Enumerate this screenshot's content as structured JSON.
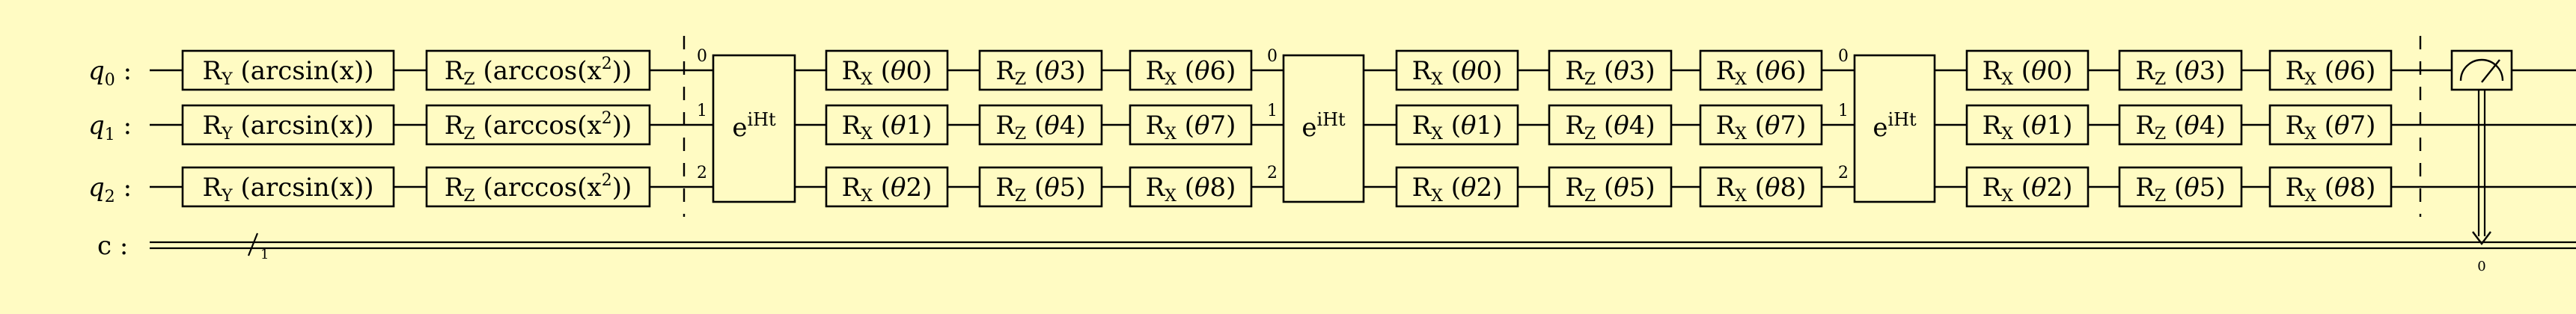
{
  "background": "#fffbc3",
  "ink": "#000000",
  "qubit_labels": [
    "q",
    "q",
    "q"
  ],
  "qubit_indices": [
    "0",
    "1",
    "2"
  ],
  "label_colon": ":",
  "classical_label": "c :",
  "classical_bundle_width": "1",
  "measure_bit": "0",
  "encoding_gates": {
    "ry": {
      "op": "R",
      "sub": "Y",
      "arg": "(arcsin(x))"
    },
    "rz": {
      "op": "R",
      "sub": "Z",
      "arg_pre": "(arccos(x",
      "arg_sup": "2",
      "arg_post": "))"
    }
  },
  "evolution_gate": {
    "base": "e",
    "sup": "iHt",
    "port_labels": [
      "0",
      "1",
      "2"
    ]
  },
  "variational_layer": {
    "columns": [
      {
        "sub": "X",
        "params": [
          "θ0",
          "θ1",
          "θ2"
        ]
      },
      {
        "sub": "Z",
        "params": [
          "θ3",
          "θ4",
          "θ5"
        ]
      },
      {
        "sub": "X",
        "params": [
          "θ6",
          "θ7",
          "θ8"
        ]
      }
    ]
  },
  "layer_count": 3,
  "measured_qubit": "0"
}
